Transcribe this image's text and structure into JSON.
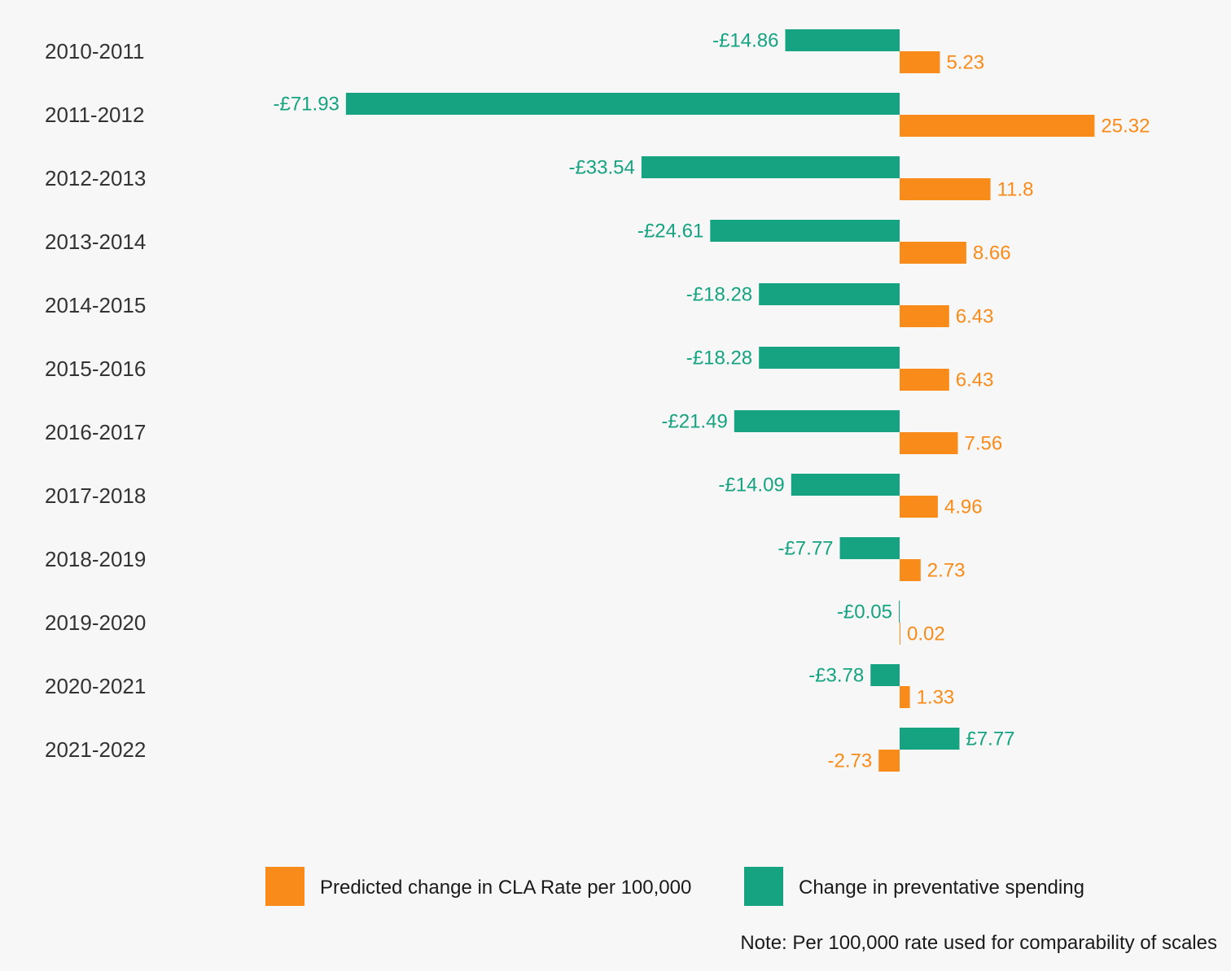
{
  "chart_data": {
    "type": "bar",
    "orientation": "horizontal",
    "categories": [
      "2010-2011",
      "2011-2012",
      "2012-2013",
      "2013-2014",
      "2014-2015",
      "2015-2016",
      "2016-2017",
      "2017-2018",
      "2018-2019",
      "2019-2020",
      "2020-2021",
      "2021-2022"
    ],
    "series": [
      {
        "name": "Change in preventative spending",
        "color": "#15a381",
        "values": [
          -14.86,
          -71.93,
          -33.54,
          -24.61,
          -18.28,
          -18.28,
          -21.49,
          -14.09,
          -7.77,
          -0.05,
          -3.78,
          7.77
        ],
        "labels": [
          "-£14.86",
          "-£71.93",
          "-£33.54",
          "-£24.61",
          "-£18.28",
          "-£18.28",
          "-£21.49",
          "-£14.09",
          "-£7.77",
          "-£0.05",
          "-£3.78",
          "£7.77"
        ]
      },
      {
        "name": "Predicted change in CLA Rate per 100,000",
        "color": "#f98b1a",
        "values": [
          5.23,
          25.32,
          11.8,
          8.66,
          6.43,
          6.43,
          7.56,
          4.96,
          2.73,
          0.02,
          1.33,
          -2.73
        ],
        "labels": [
          "5.23",
          "25.32",
          "11.8",
          "8.66",
          "6.43",
          "6.43",
          "7.56",
          "4.96",
          "2.73",
          "0.02",
          "1.33",
          "-2.73"
        ]
      }
    ],
    "legend": {
      "placement": "bottom",
      "items": [
        {
          "label": "Predicted change in CLA Rate per 100,000",
          "color": "#f98b1a"
        },
        {
          "label": "Change in preventative spending",
          "color": "#15a381"
        }
      ]
    },
    "note": "Note: Per 100,000 rate used for comparability of scales",
    "grid": false,
    "axes_visible": false
  }
}
